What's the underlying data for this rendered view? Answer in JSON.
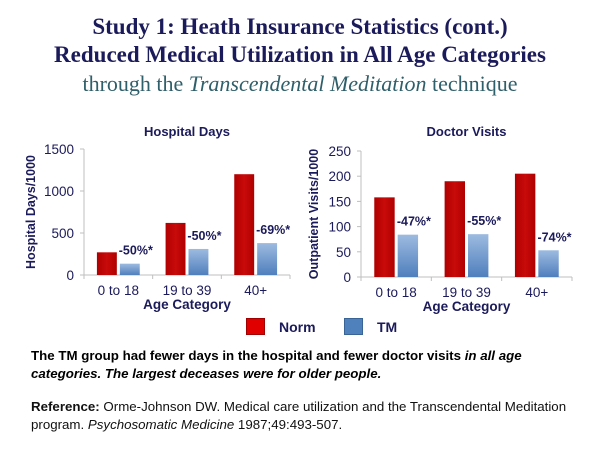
{
  "header": {
    "line1": "Study 1: Heath Insurance Statistics (cont.)",
    "line2": "Reduced Medical Utilization in All Age Categories",
    "line3_pre": "through the ",
    "line3_italic": "Transcendental Meditation",
    "line3_post": " technique"
  },
  "legend": {
    "items": [
      {
        "label": "Norm",
        "color": "#c00000"
      },
      {
        "label": "TM",
        "color": "#4f81bd"
      }
    ]
  },
  "summary": {
    "plain": "The TM group had fewer days in the hospital and fewer doctor visits ",
    "italic": "in all age categories. The largest deceases were for older people."
  },
  "reference": {
    "label": "Reference:",
    "text_pre": " Orme-Johnson DW. Medical care utilization and the Transcendental Meditation program. ",
    "journal": "Psychosomatic Medicine",
    "text_post": " 1987;49:493-507."
  },
  "chart_data": [
    {
      "type": "bar",
      "title": "Hospital Days",
      "xlabel": "Age Category",
      "ylabel": "Hospital Days/1000",
      "categories": [
        "0 to 18",
        "19 to 39",
        "40+"
      ],
      "ylim": [
        0,
        1500
      ],
      "yticks": [
        0,
        500,
        1000,
        1500
      ],
      "series": [
        {
          "name": "Norm",
          "values": [
            270,
            620,
            1200
          ]
        },
        {
          "name": "TM",
          "values": [
            135,
            310,
            380
          ]
        }
      ],
      "annotations": [
        "-50%*",
        "-50%*",
        "-69%*"
      ],
      "grid": false
    },
    {
      "type": "bar",
      "title": "Doctor Visits",
      "xlabel": "Age Category",
      "ylabel": "Outpatient Visits/1000",
      "categories": [
        "0 to 18",
        "19 to 39",
        "40+"
      ],
      "ylim": [
        0,
        250
      ],
      "yticks": [
        0,
        50,
        100,
        150,
        200,
        250
      ],
      "series": [
        {
          "name": "Norm",
          "values": [
            158,
            190,
            205
          ]
        },
        {
          "name": "TM",
          "values": [
            84,
            85,
            53
          ]
        }
      ],
      "annotations": [
        "-47%*",
        "-55%*",
        "-74%*"
      ],
      "grid": false
    }
  ]
}
